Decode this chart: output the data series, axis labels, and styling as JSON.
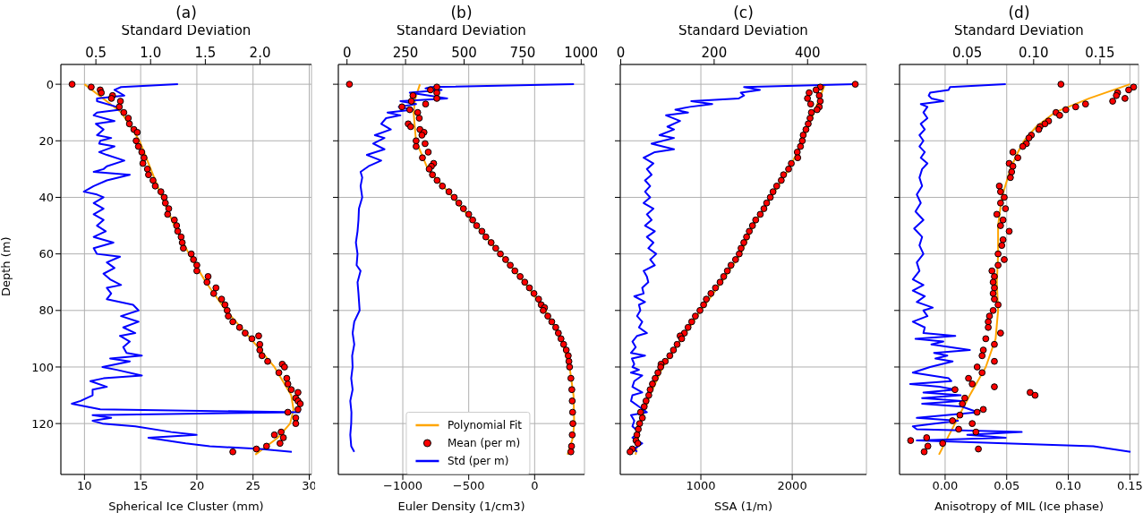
{
  "chart_data": [
    {
      "type": "scatter",
      "title": "(a)",
      "xlabel": "Spherical Ice Cluster (mm)",
      "x2label": "Standard Deviation",
      "ylabel": "Depth (m)",
      "xlim": [
        7.9,
        30.2
      ],
      "xticks": [
        10,
        15,
        20,
        25,
        30
      ],
      "x2lim": [
        0.18,
        2.47
      ],
      "x2ticks": [
        0.5,
        {
          "value": 1,
          "label": "1.0"
        },
        1.5,
        {
          "value": 2,
          "label": "2.0"
        }
      ],
      "ylim": [
        138,
        -7
      ],
      "yticks": [
        0,
        20,
        40,
        60,
        80,
        100,
        120
      ],
      "grid": true,
      "series": [
        {
          "type": "line",
          "color": "#ffa500",
          "x": [
            10.0,
            13.3,
            14.9,
            15.9,
            16.9,
            18.0,
            19.3,
            20.8,
            22.6,
            24.8,
            26.9,
            28.4,
            28.6,
            28.3,
            27.2,
            25.2
          ],
          "values": [
            0,
            10,
            20,
            30,
            40,
            50,
            60,
            70,
            80,
            90,
            100,
            110,
            115,
            120,
            125,
            131
          ]
        },
        {
          "type": "scatter",
          "color": "#ff0000",
          "marker": "circle",
          "x": [
            8.9,
            10.6,
            11.4,
            11.5,
            12.5,
            12.4,
            13.2,
            13.1,
            13.5,
            13.9,
            14.0,
            14.4,
            14.7,
            14.6,
            14.8,
            15.1,
            15.3,
            15.2,
            15.6,
            15.7,
            16.1,
            16.3,
            16.8,
            17.1,
            17.2,
            17.5,
            17.4,
            18.0,
            18.2,
            18.3,
            18.6,
            18.7,
            18.8,
            19.5,
            19.7,
            20.0,
            20.0,
            21.0,
            20.9,
            21.7,
            21.5,
            22.2,
            22.5,
            22.7,
            22.8,
            23.2,
            23.8,
            24.3,
            25.5,
            24.9,
            25.6,
            25.6,
            25.8,
            26.3,
            27.6,
            27.8,
            27.3,
            28.0,
            28.1,
            28.4,
            29.0,
            28.8,
            29.0,
            29.2,
            29.0,
            28.1,
            28.8,
            28.8,
            27.5,
            26.9,
            27.7,
            27.4,
            26.2,
            25.3,
            23.2
          ],
          "values": [
            0,
            1,
            2,
            3,
            4,
            5,
            6,
            8,
            10,
            12,
            14,
            16,
            17,
            20,
            22,
            24,
            26,
            28,
            30,
            32,
            34,
            36,
            38,
            40,
            42,
            44,
            46,
            48,
            50,
            52,
            54,
            56,
            58,
            60,
            62,
            64,
            66,
            68,
            70,
            72,
            74,
            76,
            78,
            80,
            82,
            84,
            86,
            88,
            89,
            90,
            92,
            94,
            96,
            98,
            99,
            100,
            102,
            104,
            106,
            108,
            109,
            111,
            112,
            113,
            115,
            116,
            118,
            120,
            123,
            124,
            125,
            127,
            128,
            129,
            130
          ]
        },
        {
          "type": "line",
          "color": "#0000ff",
          "axis": "x2",
          "x": [
            1.25,
            0.73,
            0.67,
            0.76,
            0.51,
            0.51,
            0.69,
            0.72,
            0.51,
            0.48,
            0.67,
            0.5,
            0.57,
            0.51,
            0.64,
            0.54,
            0.53,
            0.67,
            0.53,
            0.6,
            0.76,
            0.6,
            0.57,
            0.48,
            0.81,
            0.6,
            0.48,
            0.39,
            0.51,
            0.57,
            0.48,
            0.57,
            0.48,
            0.57,
            0.51,
            0.59,
            0.48,
            0.66,
            0.48,
            0.51,
            0.72,
            0.6,
            0.67,
            0.57,
            0.63,
            0.73,
            0.6,
            0.64,
            0.6,
            0.84,
            0.89,
            0.73,
            0.89,
            0.75,
            0.86,
            0.72,
            0.81,
            0.75,
            0.78,
            0.92,
            0.63,
            0.81,
            0.56,
            0.69,
            0.92,
            0.57,
            0.45,
            0.6,
            0.47,
            0.47,
            0.36,
            0.28,
            0.54,
            2.36,
            0.47,
            0.64,
            0.47,
            0.56,
            0.86,
            1.19,
            1.42,
            0.98,
            1.32,
            1.54,
            2.0,
            2.29
          ],
          "values": [
            0,
            1,
            2,
            4,
            5,
            6,
            8,
            9,
            10,
            11,
            13,
            14,
            16,
            18,
            19,
            20,
            21,
            22,
            24,
            25,
            27,
            29,
            30,
            31,
            32,
            34,
            36,
            38,
            39,
            40,
            42,
            44,
            46,
            48,
            50,
            52,
            54,
            56,
            58,
            60,
            61,
            63,
            65,
            67,
            69,
            71,
            72,
            74,
            76,
            78,
            80,
            82,
            84,
            86,
            88,
            89,
            91,
            93,
            95,
            96,
            97,
            98,
            100,
            101,
            103,
            104,
            105,
            107,
            108,
            110,
            112,
            113,
            115,
            116,
            117,
            118,
            119,
            120,
            121,
            123,
            124,
            125,
            127,
            128,
            129,
            130
          ]
        }
      ]
    },
    {
      "type": "scatter",
      "title": "(b)",
      "xlabel": "Euler Density (1/cm3)",
      "x2label": "Standard Deviation",
      "xlim": [
        -1489,
        378
      ],
      "xticks": [
        {
          "value": -1000,
          "label": "−1000"
        },
        {
          "value": -500,
          "label": "−500"
        },
        0
      ],
      "x2lim": [
        -37,
        1014
      ],
      "x2ticks": [
        0,
        250,
        500,
        750,
        1000
      ],
      "ylim": [
        138,
        -7
      ],
      "yticks": [
        0,
        20,
        40,
        60,
        80,
        100,
        120
      ],
      "grid": true,
      "tick_labels": "x",
      "legend": "bottom",
      "series": [
        {
          "type": "line",
          "name": "Polynomial Fit",
          "color": "#ffa500",
          "x": [
            -870,
            -905,
            -918,
            -900,
            -810,
            -620,
            -440,
            -260,
            -80,
            80,
            200,
            265,
            295,
            300,
            290,
            250
          ],
          "values": [
            0,
            5,
            10,
            20,
            30,
            40,
            50,
            60,
            70,
            80,
            90,
            100,
            110,
            120,
            125,
            131
          ]
        },
        {
          "type": "scatter",
          "name": "Mean (per m)",
          "color": "#ff0000",
          "marker": "circle",
          "x": [
            -1405,
            -742,
            -790,
            -742,
            -923,
            -742,
            -935,
            -827,
            -1007,
            -947,
            -887,
            -875,
            -959,
            -940,
            -870,
            -839,
            -855,
            -899,
            -831,
            -899,
            -807,
            -851,
            -766,
            -783,
            -800,
            -775,
            -740,
            -700,
            -650,
            -610,
            -575,
            -540,
            -500,
            -470,
            -440,
            -400,
            -370,
            -330,
            -295,
            -260,
            -220,
            -185,
            -150,
            -110,
            -75,
            -40,
            -5,
            30,
            50,
            75,
            65,
            100,
            130,
            160,
            180,
            200,
            220,
            240,
            255,
            260,
            265,
            275,
            282,
            285,
            288,
            290,
            285,
            280,
            275
          ],
          "values": [
            0,
            1,
            2,
            3,
            4,
            5,
            6,
            7,
            8,
            9,
            10,
            12,
            14,
            15,
            16,
            17,
            18,
            20,
            21,
            22,
            24,
            26,
            28,
            29,
            30,
            32,
            34,
            36,
            38,
            40,
            42,
            44,
            46,
            48,
            50,
            52,
            54,
            56,
            58,
            60,
            62,
            64,
            66,
            68,
            70,
            72,
            74,
            76,
            78,
            79,
            80,
            82,
            84,
            86,
            88,
            90,
            92,
            94,
            96,
            98,
            100,
            104,
            108,
            112,
            116,
            120,
            124,
            128,
            130
          ]
        },
        {
          "type": "line",
          "name": "Std (per m)",
          "color": "#0000ff",
          "axis": "x2",
          "x": [
            969,
            356,
            335,
            404,
            268,
            350,
            428,
            228,
            295,
            221,
            282,
            173,
            228,
            167,
            146,
            187,
            119,
            160,
            112,
            160,
            85,
            146,
            92,
            58,
            65,
            58,
            65,
            51,
            49,
            45,
            38,
            45,
            41,
            58,
            45,
            49,
            54,
            31,
            24,
            31,
            22,
            24,
            18,
            24,
            14,
            19,
            18,
            14,
            18,
            31
          ],
          "values": [
            0,
            1,
            1.5,
            2,
            3,
            4,
            5,
            6,
            7,
            8,
            9,
            10,
            11,
            12,
            14,
            16,
            18,
            19,
            21,
            23,
            25,
            27,
            29,
            31,
            33,
            36,
            40,
            44,
            48,
            52,
            56,
            60,
            64,
            66,
            70,
            74,
            80,
            84,
            88,
            92,
            96,
            100,
            104,
            108,
            112,
            116,
            120,
            124,
            128,
            130
          ]
        }
      ]
    },
    {
      "type": "scatter",
      "title": "(c)",
      "xlabel": "SSA (1/m)",
      "x2label": "Standard Deviation",
      "xlim": [
        118,
        2812
      ],
      "xticks": [
        1000,
        2000
      ],
      "x2lim": [
        -1,
        526
      ],
      "x2ticks": [
        0,
        200,
        400
      ],
      "ylim": [
        138,
        -7
      ],
      "yticks": [
        0,
        20,
        40,
        60,
        80,
        100,
        120
      ],
      "grid": true,
      "tick_labels": "x",
      "series": [
        {
          "type": "line",
          "color": "#ffa500",
          "x": [
            2359,
            2115,
            1965,
            1767,
            1575,
            1436,
            1226,
            1000,
            791,
            582,
            443,
            338,
            286
          ],
          "values": [
            0,
            20,
            30,
            40,
            50,
            60,
            70,
            80,
            90,
            100,
            110,
            120,
            131
          ]
        },
        {
          "type": "scatter",
          "color": "#ff0000",
          "marker": "circle",
          "x": [
            2690,
            2307,
            2261,
            2185,
            2296,
            2167,
            2307,
            2202,
            2296,
            2272,
            2210,
            2195,
            2175,
            2150,
            2120,
            2110,
            2090,
            2055,
            2060,
            1990,
            1960,
            1905,
            1880,
            1830,
            1790,
            1760,
            1720,
            1690,
            1650,
            1600,
            1565,
            1530,
            1500,
            1470,
            1440,
            1420,
            1380,
            1330,
            1290,
            1250,
            1210,
            1160,
            1110,
            1060,
            1030,
            990,
            940,
            900,
            860,
            820,
            773,
            790,
            740,
            700,
            660,
            610,
            564,
            560,
            530,
            500,
            470,
            445,
            430,
            400,
            380,
            340,
            360,
            330,
            315,
            300,
            290,
            310,
            250,
            225
          ],
          "values": [
            0,
            1,
            2,
            3,
            4,
            5,
            6,
            7,
            8,
            9,
            10,
            12,
            14,
            16,
            18,
            20,
            22,
            24,
            26,
            28,
            30,
            32,
            34,
            36,
            38,
            40,
            42,
            44,
            46,
            48,
            50,
            52,
            54,
            56,
            58,
            60,
            62,
            64,
            66,
            68,
            70,
            72,
            74,
            76,
            78,
            80,
            82,
            84,
            86,
            88,
            89,
            90,
            92,
            94,
            96,
            98,
            99,
            100,
            102,
            104,
            106,
            108,
            110,
            112,
            114,
            116,
            118,
            120,
            122,
            124,
            126,
            127,
            129,
            130
          ]
        },
        {
          "type": "line",
          "color": "#0000ff",
          "axis": "x2",
          "x": [
            502,
            264,
            298,
            257,
            264,
            253,
            151,
            196,
            148,
            117,
            144,
            97,
            127,
            100,
            114,
            83,
            114,
            66,
            114,
            73,
            49,
            70,
            56,
            66,
            52,
            63,
            52,
            63,
            49,
            70,
            56,
            66,
            52,
            73,
            56,
            70,
            59,
            76,
            63,
            73,
            49,
            56,
            59,
            46,
            49,
            29,
            52,
            39,
            42,
            35,
            46,
            39,
            56,
            35,
            25,
            32,
            22,
            52,
            24,
            29,
            25,
            39,
            22,
            46,
            29,
            25,
            46,
            25,
            22,
            39,
            56,
            22,
            29,
            25,
            39,
            25,
            46,
            29,
            35
          ],
          "values": [
            0,
            1,
            2,
            3,
            4,
            5,
            6,
            7,
            8,
            9,
            10,
            11,
            13,
            15,
            16,
            18,
            19,
            21,
            23,
            24,
            26,
            28,
            30,
            32,
            34,
            36,
            38,
            40,
            42,
            44,
            46,
            48,
            50,
            52,
            54,
            56,
            58,
            60,
            62,
            64,
            66,
            68,
            70,
            72,
            74,
            75,
            77,
            78,
            80,
            82,
            84,
            86,
            88,
            89,
            91,
            93,
            95,
            96,
            97,
            99,
            100,
            101,
            102,
            103,
            105,
            107,
            109,
            110,
            112,
            114,
            116,
            117,
            119,
            121,
            123,
            125,
            127,
            129,
            130
          ]
        }
      ]
    },
    {
      "type": "scatter",
      "title": "(d)",
      "xlabel": "Anisotropy of MIL (Ice phase)",
      "x2label": "Standard Deviation",
      "xlim": [
        -0.037,
        0.157
      ],
      "xticks": [
        {
          "value": 0,
          "label": "0.00"
        },
        0.05,
        {
          "value": 0.1,
          "label": "0.10"
        },
        0.15
      ],
      "x2lim": [
        -0.001,
        0.179
      ],
      "x2ticks": [
        0.05,
        {
          "value": 0.1,
          "label": "0.10"
        },
        0.15
      ],
      "ylim": [
        138,
        -7
      ],
      "yticks": [
        0,
        20,
        40,
        60,
        80,
        100,
        120
      ],
      "grid": true,
      "tick_labels": "x",
      "series": [
        {
          "type": "line",
          "color": "#ffa500",
          "x": [
            0.15,
            0.117,
            0.089,
            0.074,
            0.064,
            0.058,
            0.053,
            0.046,
            0.043,
            0.043,
            0.042,
            0.043,
            0.041,
            0.033,
            0.02,
            0.008,
            -0.005
          ],
          "values": [
            0,
            5,
            10,
            15,
            20,
            25,
            30,
            40,
            50,
            60,
            70,
            80,
            90,
            100,
            110,
            120,
            131
          ]
        },
        {
          "type": "scatter",
          "color": "#ff0000",
          "marker": "circle",
          "x": [
            0.094,
            0.153,
            0.149,
            0.14,
            0.139,
            0.146,
            0.136,
            0.114,
            0.106,
            0.098,
            0.09,
            0.093,
            0.084,
            0.081,
            0.077,
            0.076,
            0.07,
            0.068,
            0.066,
            0.063,
            0.055,
            0.059,
            0.052,
            0.055,
            0.054,
            0.053,
            0.044,
            0.045,
            0.048,
            0.045,
            0.049,
            0.042,
            0.047,
            0.045,
            0.052,
            0.047,
            0.046,
            0.043,
            0.048,
            0.043,
            0.038,
            0.04,
            0.039,
            0.04,
            0.039,
            0.04,
            0.043,
            0.039,
            0.036,
            0.035,
            0.035,
            0.045,
            0.033,
            0.04,
            0.031,
            0.03,
            0.04,
            0.026,
            0.03,
            0.019,
            0.022,
            0.04,
            0.008,
            0.069,
            0.073,
            0.016,
            0.014,
            0.031,
            0.026,
            0.012,
            0.006,
            0.022,
            0.011,
            0.025,
            -0.015,
            -0.028,
            -0.002,
            -0.014,
            0.027,
            -0.017
          ],
          "values": [
            0,
            1,
            2,
            3,
            4,
            5,
            6,
            7,
            8,
            9,
            10,
            11,
            13,
            14,
            15,
            16,
            18,
            19,
            21,
            22,
            24,
            26,
            28,
            29,
            31,
            33,
            36,
            38,
            40,
            42,
            44,
            46,
            48,
            50,
            52,
            55,
            57,
            60,
            62,
            64,
            66,
            68,
            70,
            72,
            74,
            76,
            78,
            80,
            82,
            84,
            86,
            88,
            90,
            92,
            94,
            96,
            98,
            100,
            102,
            104,
            106,
            107,
            108,
            109,
            110,
            111,
            113,
            115,
            116,
            117,
            119,
            120,
            122,
            123,
            125,
            126,
            127,
            128,
            129,
            130
          ]
        },
        {
          "type": "line",
          "color": "#0000ff",
          "axis": "x2",
          "x": [
            0.079,
            0.037,
            0.036,
            0.022,
            0.021,
            0.023,
            0.032,
            0.015,
            0.02,
            0.017,
            0.02,
            0.015,
            0.018,
            0.014,
            0.017,
            0.014,
            0.018,
            0.015,
            0.02,
            0.016,
            0.014,
            0.016,
            0.012,
            0.015,
            0.011,
            0.017,
            0.01,
            0.016,
            0.014,
            0.017,
            0.012,
            0.014,
            0.009,
            0.017,
            0.009,
            0.018,
            0.012,
            0.024,
            0.017,
            0.02,
            0.009,
            0.018,
            0.017,
            0.041,
            0.011,
            0.032,
            0.023,
            0.052,
            0.025,
            0.035,
            0.026,
            0.039,
            0.022,
            0.009,
            0.036,
            0.038,
            0.007,
            0.029,
            0.041,
            0.017,
            0.045,
            0.016,
            0.046,
            0.016,
            0.046,
            0.058,
            0.012,
            0.043,
            0.009,
            0.012,
            0.091,
            0.05,
            0.079,
            0.012,
            0.145,
            0.173
          ],
          "values": [
            0,
            1,
            2,
            3,
            4,
            5,
            6,
            7,
            8,
            10,
            12,
            14,
            16,
            18,
            20,
            22,
            24,
            26,
            28,
            30,
            33,
            36,
            39,
            42,
            45,
            48,
            51,
            54,
            57,
            60,
            63,
            66,
            69,
            71,
            73,
            75,
            77,
            79,
            80,
            82,
            84,
            86,
            88,
            89,
            90,
            91,
            92,
            94,
            95,
            96,
            97,
            98,
            100,
            102,
            104,
            105,
            106,
            107,
            108,
            109,
            110,
            111,
            112,
            113,
            114,
            116,
            118,
            119,
            121,
            122,
            123,
            124,
            125,
            126,
            128,
            130
          ]
        }
      ]
    }
  ]
}
